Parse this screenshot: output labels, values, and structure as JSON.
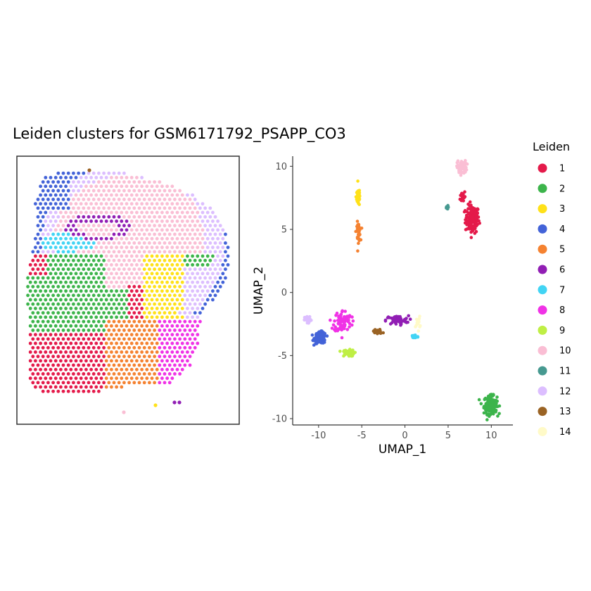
{
  "title": "Leiden clusters for GSM6171792_PSAPP_CO3",
  "colors": {
    "1": "#e41a4a",
    "2": "#3cb44b",
    "3": "#ffe119",
    "4": "#4363d8",
    "5": "#f58231",
    "6": "#911eb4",
    "7": "#42d4f4",
    "8": "#f032e6",
    "9": "#bfef45",
    "10": "#fabed4",
    "11": "#469990",
    "12": "#dcbeff",
    "13": "#9a6324",
    "14": "#fffac8"
  },
  "legend": {
    "title": "Leiden",
    "items": [
      {
        "label": "1",
        "cluster": "1"
      },
      {
        "label": "2",
        "cluster": "2"
      },
      {
        "label": "3",
        "cluster": "3"
      },
      {
        "label": "4",
        "cluster": "4"
      },
      {
        "label": "5",
        "cluster": "5"
      },
      {
        "label": "6",
        "cluster": "6"
      },
      {
        "label": "7",
        "cluster": "7"
      },
      {
        "label": "8",
        "cluster": "8"
      },
      {
        "label": "9",
        "cluster": "9"
      },
      {
        "label": "10",
        "cluster": "10"
      },
      {
        "label": "11",
        "cluster": "11"
      },
      {
        "label": "12",
        "cluster": "12"
      },
      {
        "label": "13",
        "cluster": "13"
      },
      {
        "label": "14",
        "cluster": "14"
      }
    ]
  },
  "chart_data": [
    {
      "type": "scatter",
      "name": "spatial",
      "description": "Spatial spot map of tissue section colored by Leiden cluster; no axes shown",
      "axes_visible": false
    },
    {
      "type": "scatter",
      "name": "umap",
      "xlabel": "UMAP_1",
      "ylabel": "UMAP_2",
      "xlim": [
        -13,
        12.5
      ],
      "ylim": [
        -10.5,
        10.8
      ],
      "xticks": [
        -10,
        -5,
        0,
        5,
        10
      ],
      "xtick_labels": [
        "-10",
        "-5",
        "0",
        "5",
        "10"
      ],
      "yticks": [
        -10,
        -5,
        0,
        5,
        10
      ],
      "ytick_labels": [
        "-10",
        "-5",
        "0",
        "5",
        "10"
      ],
      "grid": false,
      "clusters": [
        {
          "cluster": "1",
          "center": [
            7.8,
            5.8
          ],
          "spread": [
            0.8,
            1.1
          ],
          "n": 150
        },
        {
          "cluster": "1",
          "center": [
            6.7,
            7.6
          ],
          "spread": [
            0.3,
            0.5
          ],
          "n": 25
        },
        {
          "cluster": "2",
          "center": [
            9.9,
            -8.9
          ],
          "spread": [
            0.75,
            0.7
          ],
          "n": 160
        },
        {
          "cluster": "3",
          "center": [
            -5.4,
            7.6
          ],
          "spread": [
            0.25,
            0.75
          ],
          "n": 45
        },
        {
          "cluster": "4",
          "center": [
            -9.8,
            -3.6
          ],
          "spread": [
            0.65,
            0.45
          ],
          "n": 130
        },
        {
          "cluster": "5",
          "center": [
            -5.4,
            4.8
          ],
          "spread": [
            0.25,
            0.75
          ],
          "n": 40
        },
        {
          "cluster": "6",
          "center": [
            -0.9,
            -2.2
          ],
          "spread": [
            1.3,
            0.35
          ],
          "n": 55
        },
        {
          "cluster": "7",
          "center": [
            1.1,
            -3.5
          ],
          "spread": [
            0.45,
            0.18
          ],
          "n": 30
        },
        {
          "cluster": "8",
          "center": [
            -7.2,
            -2.3
          ],
          "spread": [
            1.0,
            0.9
          ],
          "n": 80
        },
        {
          "cluster": "9",
          "center": [
            -6.6,
            -4.8
          ],
          "spread": [
            0.7,
            0.25
          ],
          "n": 70
        },
        {
          "cluster": "10",
          "center": [
            6.6,
            9.9
          ],
          "spread": [
            0.55,
            0.55
          ],
          "n": 60
        },
        {
          "cluster": "11",
          "center": [
            4.9,
            6.7
          ],
          "spread": [
            0.18,
            0.18
          ],
          "n": 12
        },
        {
          "cluster": "12",
          "center": [
            -11.2,
            -2.2
          ],
          "spread": [
            0.4,
            0.3
          ],
          "n": 30
        },
        {
          "cluster": "13",
          "center": [
            -3.2,
            -3.1
          ],
          "spread": [
            0.6,
            0.2
          ],
          "n": 28
        },
        {
          "cluster": "14",
          "center": [
            1.5,
            -2.4
          ],
          "spread": [
            0.25,
            0.5
          ],
          "n": 15
        }
      ]
    }
  ]
}
